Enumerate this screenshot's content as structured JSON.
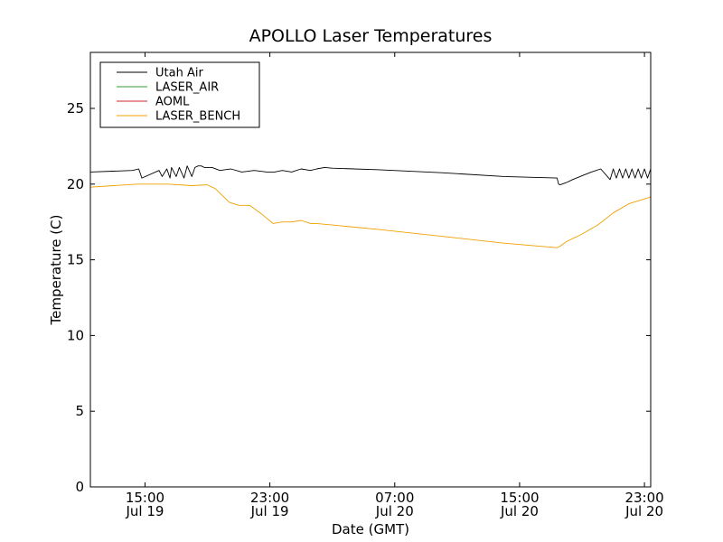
{
  "chart_data": {
    "type": "line",
    "title": "APOLLO Laser Temperatures",
    "xlabel": "Date (GMT)",
    "ylabel": "Temperature (C)",
    "xlim": [
      11.5,
      47.4
    ],
    "ylim": [
      0,
      28.7
    ],
    "x_unit": "hours since Jul 19 00:00 GMT",
    "grid": false,
    "legend_position": "top-left",
    "x_ticks": [
      {
        "value": 15,
        "line1": "15:00",
        "line2": "Jul 19"
      },
      {
        "value": 23,
        "line1": "23:00",
        "line2": "Jul 19"
      },
      {
        "value": 31,
        "line1": "07:00",
        "line2": "Jul 20"
      },
      {
        "value": 39,
        "line1": "15:00",
        "line2": "Jul 20"
      },
      {
        "value": 47,
        "line1": "23:00",
        "line2": "Jul 20"
      }
    ],
    "y_ticks": [
      {
        "value": 0,
        "label": "0"
      },
      {
        "value": 5,
        "label": "5"
      },
      {
        "value": 10,
        "label": "10"
      },
      {
        "value": 15,
        "label": "15"
      },
      {
        "value": 20,
        "label": "20"
      },
      {
        "value": 25,
        "label": "25"
      }
    ],
    "series": [
      {
        "name": "Utah Air",
        "color": "#000000",
        "x": [
          11.5,
          14.2,
          14.6,
          14.8,
          15.9,
          16.1,
          16.4,
          16.6,
          16.7,
          17.0,
          17.2,
          17.5,
          17.7,
          18.0,
          18.2,
          18.4,
          18.6,
          18.8,
          19.3,
          19.8,
          20.5,
          21.2,
          22.0,
          22.8,
          23.3,
          23.8,
          24.4,
          25.0,
          25.6,
          26.0,
          26.5,
          27.0,
          30.0,
          34.0,
          38.0,
          41.4,
          41.5,
          41.6,
          42.0,
          42.4,
          43.0,
          43.6,
          44.2,
          44.8,
          45.0,
          45.2,
          45.4,
          45.6,
          45.8,
          46.0,
          46.2,
          46.4,
          46.6,
          46.8,
          47.0,
          47.2,
          47.4
        ],
        "values": [
          20.8,
          20.9,
          21.0,
          20.4,
          20.9,
          20.5,
          21.0,
          20.4,
          21.1,
          20.5,
          21.1,
          20.4,
          21.2,
          20.5,
          21.1,
          21.2,
          21.2,
          21.1,
          21.1,
          20.9,
          21.0,
          20.8,
          20.9,
          20.8,
          20.8,
          20.9,
          20.8,
          21.0,
          20.9,
          21.0,
          21.1,
          21.05,
          20.95,
          20.75,
          20.5,
          20.4,
          20.0,
          19.95,
          20.1,
          20.3,
          20.55,
          20.8,
          21.0,
          20.3,
          21.0,
          20.4,
          21.0,
          20.4,
          21.0,
          20.4,
          21.0,
          20.4,
          21.0,
          20.4,
          21.0,
          20.4,
          21.0
        ]
      },
      {
        "name": "LASER_AIR",
        "color": "#2ca02c",
        "x": [],
        "values": []
      },
      {
        "name": "AOML",
        "color": "#d62728",
        "x": [],
        "values": []
      },
      {
        "name": "LASER_BENCH",
        "color": "#f0a000",
        "x": [
          11.5,
          13.0,
          14.5,
          16.5,
          18.0,
          19.0,
          19.5,
          20.4,
          21.0,
          21.7,
          22.5,
          23.2,
          23.8,
          24.4,
          25.0,
          25.6,
          26.0,
          27.0,
          30.0,
          34.0,
          38.0,
          41.4,
          41.6,
          42.0,
          43.0,
          44.0,
          45.0,
          46.0,
          47.4
        ],
        "values": [
          19.8,
          19.9,
          20.0,
          20.0,
          19.9,
          19.95,
          19.7,
          18.8,
          18.6,
          18.6,
          18.0,
          17.4,
          17.5,
          17.5,
          17.6,
          17.4,
          17.4,
          17.3,
          17.0,
          16.55,
          16.1,
          15.8,
          15.9,
          16.2,
          16.7,
          17.3,
          18.1,
          18.7,
          19.15
        ]
      }
    ]
  }
}
